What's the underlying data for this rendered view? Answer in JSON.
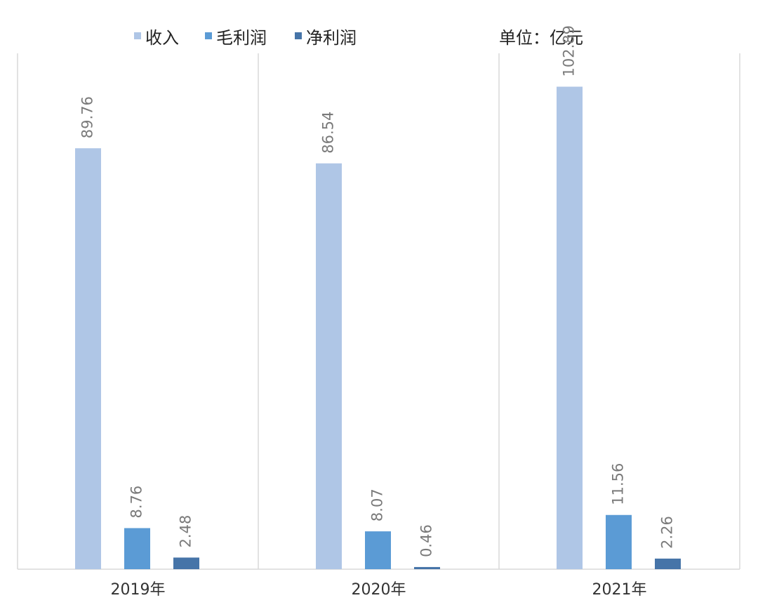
{
  "chart_data": {
    "type": "bar",
    "categories": [
      "2019年",
      "2020年",
      "2021年"
    ],
    "series": [
      {
        "name": "收入",
        "values": [
          89.76,
          86.54,
          102.89
        ],
        "color": "#AFC6E6"
      },
      {
        "name": "毛利润",
        "values": [
          8.76,
          8.07,
          11.56
        ],
        "color": "#5B9BD5"
      },
      {
        "name": "净利润",
        "values": [
          2.48,
          0.46,
          2.26
        ],
        "color": "#4674A8"
      }
    ],
    "unit_label": "单位：亿元",
    "ylim": [
      0,
      110
    ],
    "grid": false,
    "legend": "top"
  }
}
